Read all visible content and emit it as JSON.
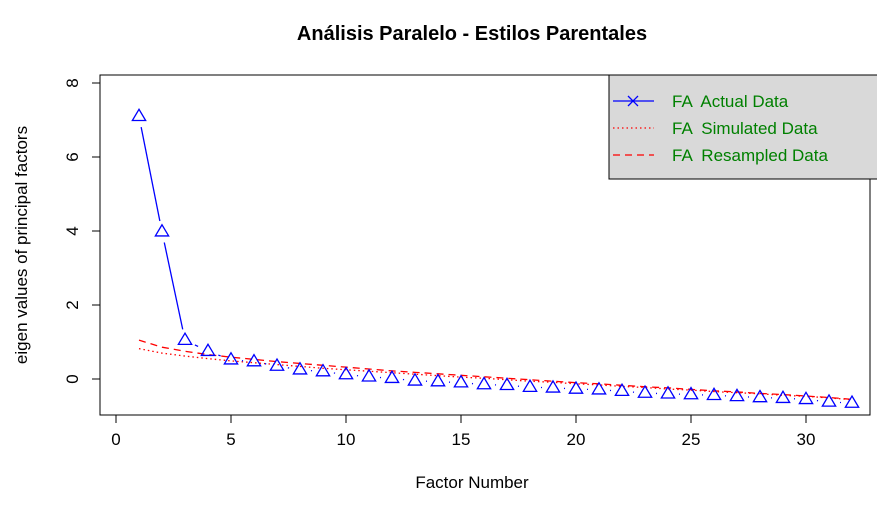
{
  "chart_data": {
    "type": "line",
    "title": "Análisis Paralelo - Estilos Parentales",
    "xlabel": "Factor Number",
    "ylabel": "eigen values of principal factors",
    "xlim": [
      0,
      32
    ],
    "ylim": [
      -1,
      8
    ],
    "xticks": [
      0,
      5,
      10,
      15,
      20,
      25,
      30
    ],
    "yticks": [
      0,
      2,
      4,
      6,
      8
    ],
    "grid": false,
    "legend_position": "top-right",
    "x": [
      1,
      2,
      3,
      4,
      5,
      6,
      7,
      8,
      9,
      10,
      11,
      12,
      13,
      14,
      15,
      16,
      17,
      18,
      19,
      20,
      21,
      22,
      23,
      24,
      25,
      26,
      27,
      28,
      29,
      30,
      31,
      32
    ],
    "series": [
      {
        "name": "FA  Actual Data",
        "color": "#0000ff",
        "style": "solid",
        "marker": "triangle",
        "values": [
          7.1,
          3.98,
          1.05,
          0.75,
          0.52,
          0.47,
          0.35,
          0.25,
          0.2,
          0.12,
          0.06,
          0.02,
          -0.05,
          -0.07,
          -0.1,
          -0.15,
          -0.17,
          -0.22,
          -0.24,
          -0.27,
          -0.29,
          -0.33,
          -0.38,
          -0.4,
          -0.42,
          -0.44,
          -0.47,
          -0.5,
          -0.52,
          -0.55,
          -0.62,
          -0.65
        ]
      },
      {
        "name": "FA  Simulated Data",
        "color": "#ff0000",
        "style": "dotted",
        "values": [
          0.82,
          0.7,
          0.62,
          0.55,
          0.49,
          0.44,
          0.39,
          0.34,
          0.29,
          0.25,
          0.21,
          0.17,
          0.13,
          0.09,
          0.05,
          0.02,
          -0.02,
          -0.06,
          -0.09,
          -0.13,
          -0.16,
          -0.2,
          -0.23,
          -0.27,
          -0.3,
          -0.34,
          -0.37,
          -0.4,
          -0.44,
          -0.47,
          -0.51,
          -0.56
        ]
      },
      {
        "name": "FA  Resampled Data",
        "color": "#ff0000",
        "style": "dashed",
        "values": [
          1.05,
          0.86,
          0.75,
          0.66,
          0.59,
          0.53,
          0.47,
          0.42,
          0.37,
          0.32,
          0.27,
          0.22,
          0.18,
          0.14,
          0.1,
          0.06,
          0.02,
          -0.02,
          -0.06,
          -0.1,
          -0.13,
          -0.17,
          -0.21,
          -0.24,
          -0.28,
          -0.32,
          -0.35,
          -0.39,
          -0.42,
          -0.46,
          -0.5,
          -0.55
        ]
      }
    ],
    "legend_text_color": "#008000",
    "legend_bg_color": "#d9d9d9"
  }
}
